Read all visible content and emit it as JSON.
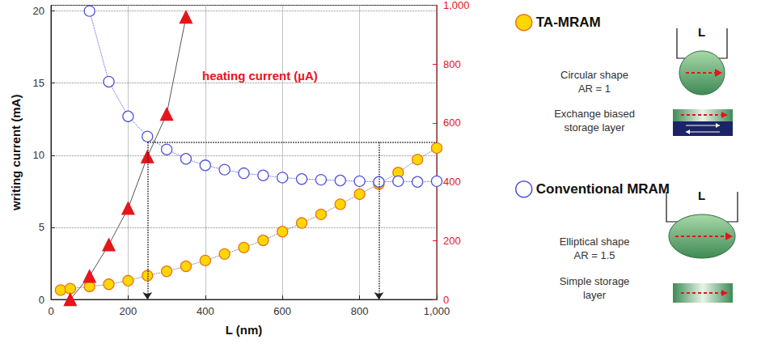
{
  "chart_data": {
    "type": "line",
    "xlabel": "L (nm)",
    "ylabel": "writing current (mA)",
    "xlim": [
      0,
      1000
    ],
    "xticks": [
      0,
      200,
      400,
      600,
      800,
      1000
    ],
    "ylim": [
      0,
      20.4
    ],
    "yticks": [
      0,
      5,
      10,
      15,
      20
    ],
    "y2lim": [
      0,
      1000
    ],
    "y2ticks": [
      0,
      200,
      400,
      600,
      800,
      1000
    ],
    "grid": true,
    "schematic_label": "L",
    "series": [
      {
        "name": "TA-MRAM",
        "color": "#ffd700",
        "marker": "circle",
        "line_style": "dotted",
        "axis": "y",
        "x": [
          25,
          50,
          100,
          150,
          200,
          250,
          300,
          350,
          400,
          450,
          500,
          550,
          600,
          650,
          700,
          750,
          800,
          850,
          900,
          950,
          1000
        ],
        "values": [
          0.65,
          0.75,
          0.9,
          1.05,
          1.3,
          1.65,
          1.95,
          2.3,
          2.7,
          3.15,
          3.6,
          4.1,
          4.7,
          5.3,
          5.9,
          6.6,
          7.3,
          8.0,
          8.8,
          9.7,
          10.5
        ],
        "notes": [
          [
            "Circular shape",
            "AR = 1"
          ],
          [
            "Exchange biased",
            "storage layer"
          ]
        ]
      },
      {
        "name": "Conventional MRAM",
        "color": "#5050dc",
        "marker": "open circle",
        "line_style": "dotted",
        "axis": "y",
        "x": [
          100,
          150,
          200,
          250,
          300,
          350,
          400,
          450,
          500,
          550,
          600,
          650,
          700,
          750,
          800,
          850,
          900,
          950,
          1000
        ],
        "values": [
          20,
          15.1,
          12.7,
          11.3,
          10.4,
          9.75,
          9.3,
          9.0,
          8.75,
          8.6,
          8.45,
          8.35,
          8.3,
          8.25,
          8.2,
          8.15,
          8.2,
          8.15,
          8.2
        ],
        "notes": [
          [
            "Elliptical shape",
            "AR = 1.5"
          ],
          [
            "Simple storage",
            "layer"
          ]
        ]
      },
      {
        "name": "heating current (µA)",
        "color": "#e8141b",
        "marker": "triangle",
        "line_style": "solid",
        "axis": "y2",
        "x": [
          50,
          100,
          150,
          200,
          250,
          300,
          350
        ],
        "values": [
          0,
          79,
          186,
          310,
          485,
          630,
          960
        ]
      }
    ],
    "guide_lines": [
      {
        "x": [
          250,
          250
        ],
        "y": [
          10.9,
          0
        ],
        "arrow": true
      },
      {
        "x": [
          250,
          1000
        ],
        "y": [
          10.9,
          10.9
        ],
        "arrow": false
      },
      {
        "x": [
          850,
          850
        ],
        "y": [
          10.9,
          0
        ],
        "arrow": true
      }
    ]
  }
}
